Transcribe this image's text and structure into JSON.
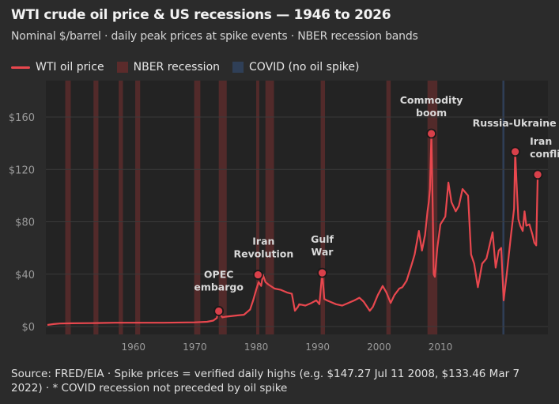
{
  "header": {
    "title": "WTI crude oil price & US recessions — 1946 to 2026",
    "subtitle": "Nominal $/barrel · daily peak prices at spike events · NBER recession bands"
  },
  "legend": {
    "items": [
      {
        "label": "WTI oil price",
        "color": "#e8474e",
        "kind": "line"
      },
      {
        "label": "NBER recession",
        "color": "#5b2b2b",
        "kind": "box"
      },
      {
        "label": "COVID (no oil spike)",
        "color": "#2f3f57",
        "kind": "box"
      }
    ]
  },
  "colors": {
    "background": "#2b2b2b",
    "plot_bg": "#232323",
    "grid": "#3a3a3a",
    "line": "#e8474e",
    "recession": "#5b2b2b",
    "covid": "#2f3f57",
    "marker_fill": "#d9404a",
    "marker_stroke": "#1a1a1a",
    "axis_text": "#9a9a9a",
    "annotation_text": "#d9d9d9"
  },
  "chart_data": {
    "type": "line",
    "title": "WTI crude oil price & US recessions — 1946 to 2026",
    "xlabel": "",
    "ylabel": "",
    "xlim": [
      1946,
      2026.3
    ],
    "ylim": [
      0,
      165
    ],
    "grid": true,
    "x_ticks": [
      1960,
      1970,
      1980,
      1990,
      2000,
      2010
    ],
    "y_ticks": [
      0,
      40,
      80,
      120,
      160
    ],
    "y_tick_labels": [
      "$0",
      "$40",
      "$80",
      "$120",
      "$160"
    ],
    "recessions": [
      [
        1948.9,
        1949.8
      ],
      [
        1953.5,
        1954.3
      ],
      [
        1957.6,
        1958.3
      ],
      [
        1960.3,
        1961.1
      ],
      [
        1969.9,
        1970.9
      ],
      [
        1973.9,
        1975.2
      ],
      [
        1980.0,
        1980.5
      ],
      [
        1981.5,
        1982.9
      ],
      [
        1990.5,
        1991.2
      ],
      [
        2001.2,
        2001.9
      ],
      [
        2007.9,
        2009.5
      ]
    ],
    "covid_recession": [
      2020.1,
      2020.4
    ],
    "series": [
      {
        "name": "WTI oil price",
        "x": [
          1946,
          1947,
          1948,
          1950,
          1953,
          1957,
          1960,
          1965,
          1970,
          1972,
          1973,
          1973.6,
          1973.8,
          1974,
          1974.5,
          1975,
          1977,
          1978,
          1979,
          1979.5,
          1980.0,
          1980.4,
          1980.8,
          1981.1,
          1981.5,
          1982,
          1983,
          1984,
          1985,
          1985.8,
          1986.3,
          1986.8,
          1987,
          1988,
          1989,
          1989.8,
          1990.3,
          1990.75,
          1991.1,
          1991.5,
          1992,
          1993,
          1994,
          1995,
          1996,
          1996.8,
          1997.5,
          1998.5,
          1999,
          1999.8,
          2000.6,
          2001.2,
          2001.9,
          2002.5,
          2003.3,
          2003.8,
          2004.5,
          2005.3,
          2005.8,
          2006.5,
          2007.0,
          2007.5,
          2007.9,
          2008.1,
          2008.3,
          2008.53,
          2008.75,
          2008.9,
          2009.1,
          2009.5,
          2010,
          2010.8,
          2011.3,
          2011.8,
          2012.5,
          2013,
          2013.6,
          2014.5,
          2015.0,
          2015.5,
          2016.1,
          2016.8,
          2017.5,
          2018.5,
          2019.0,
          2019.5,
          2019.9,
          2020.3,
          2020.8,
          2021.5,
          2022.0,
          2022.18,
          2022.4,
          2022.7,
          2023.0,
          2023.4,
          2023.7,
          2024.0,
          2024.5,
          2025.0,
          2025.3,
          2025.6,
          2025.85
        ],
        "y": [
          1.2,
          1.9,
          2.3,
          2.5,
          2.6,
          2.9,
          2.9,
          2.9,
          3.2,
          3.6,
          4.5,
          6.5,
          12,
          10,
          7,
          7.5,
          8.5,
          9,
          13,
          20,
          28,
          34,
          31,
          39.5,
          34,
          32,
          29,
          28,
          26,
          25,
          12,
          15,
          17,
          16,
          18,
          20,
          17,
          41,
          21,
          20,
          19,
          17,
          16,
          18,
          20,
          22,
          19,
          12,
          15,
          24,
          31,
          26,
          18,
          24,
          29,
          30,
          35,
          47,
          55,
          73,
          58,
          70,
          88,
          95,
          105,
          147.3,
          90,
          40,
          38,
          60,
          78,
          84,
          110,
          95,
          88,
          92,
          105,
          100,
          55,
          48,
          30,
          48,
          52,
          72,
          45,
          58,
          60,
          20,
          40,
          70,
          90,
          133.5,
          110,
          82,
          77,
          73,
          88,
          77,
          78,
          70,
          64,
          62,
          116
        ]
      }
    ],
    "annotations": [
      {
        "label": "OPEC embargo",
        "x": 1973.9,
        "y": 11.8
      },
      {
        "label": "Iran Revolution",
        "x": 1980.3,
        "y": 39.5
      },
      {
        "label": "Gulf War",
        "x": 1990.75,
        "y": 41
      },
      {
        "label": "Commodity boom",
        "x": 2008.53,
        "y": 147.3
      },
      {
        "label": "Russia-Ukraine",
        "x": 2022.18,
        "y": 133.5
      },
      {
        "label": "Iran confli",
        "x": 2025.85,
        "y": 116
      }
    ]
  },
  "footer": {
    "source": "Source: FRED/EIA · Spike prices = verified daily highs (e.g. $147.27 Jul 11 2008, $133.46 Mar 7 2022) · * COVID recession not preceded by oil spike"
  }
}
